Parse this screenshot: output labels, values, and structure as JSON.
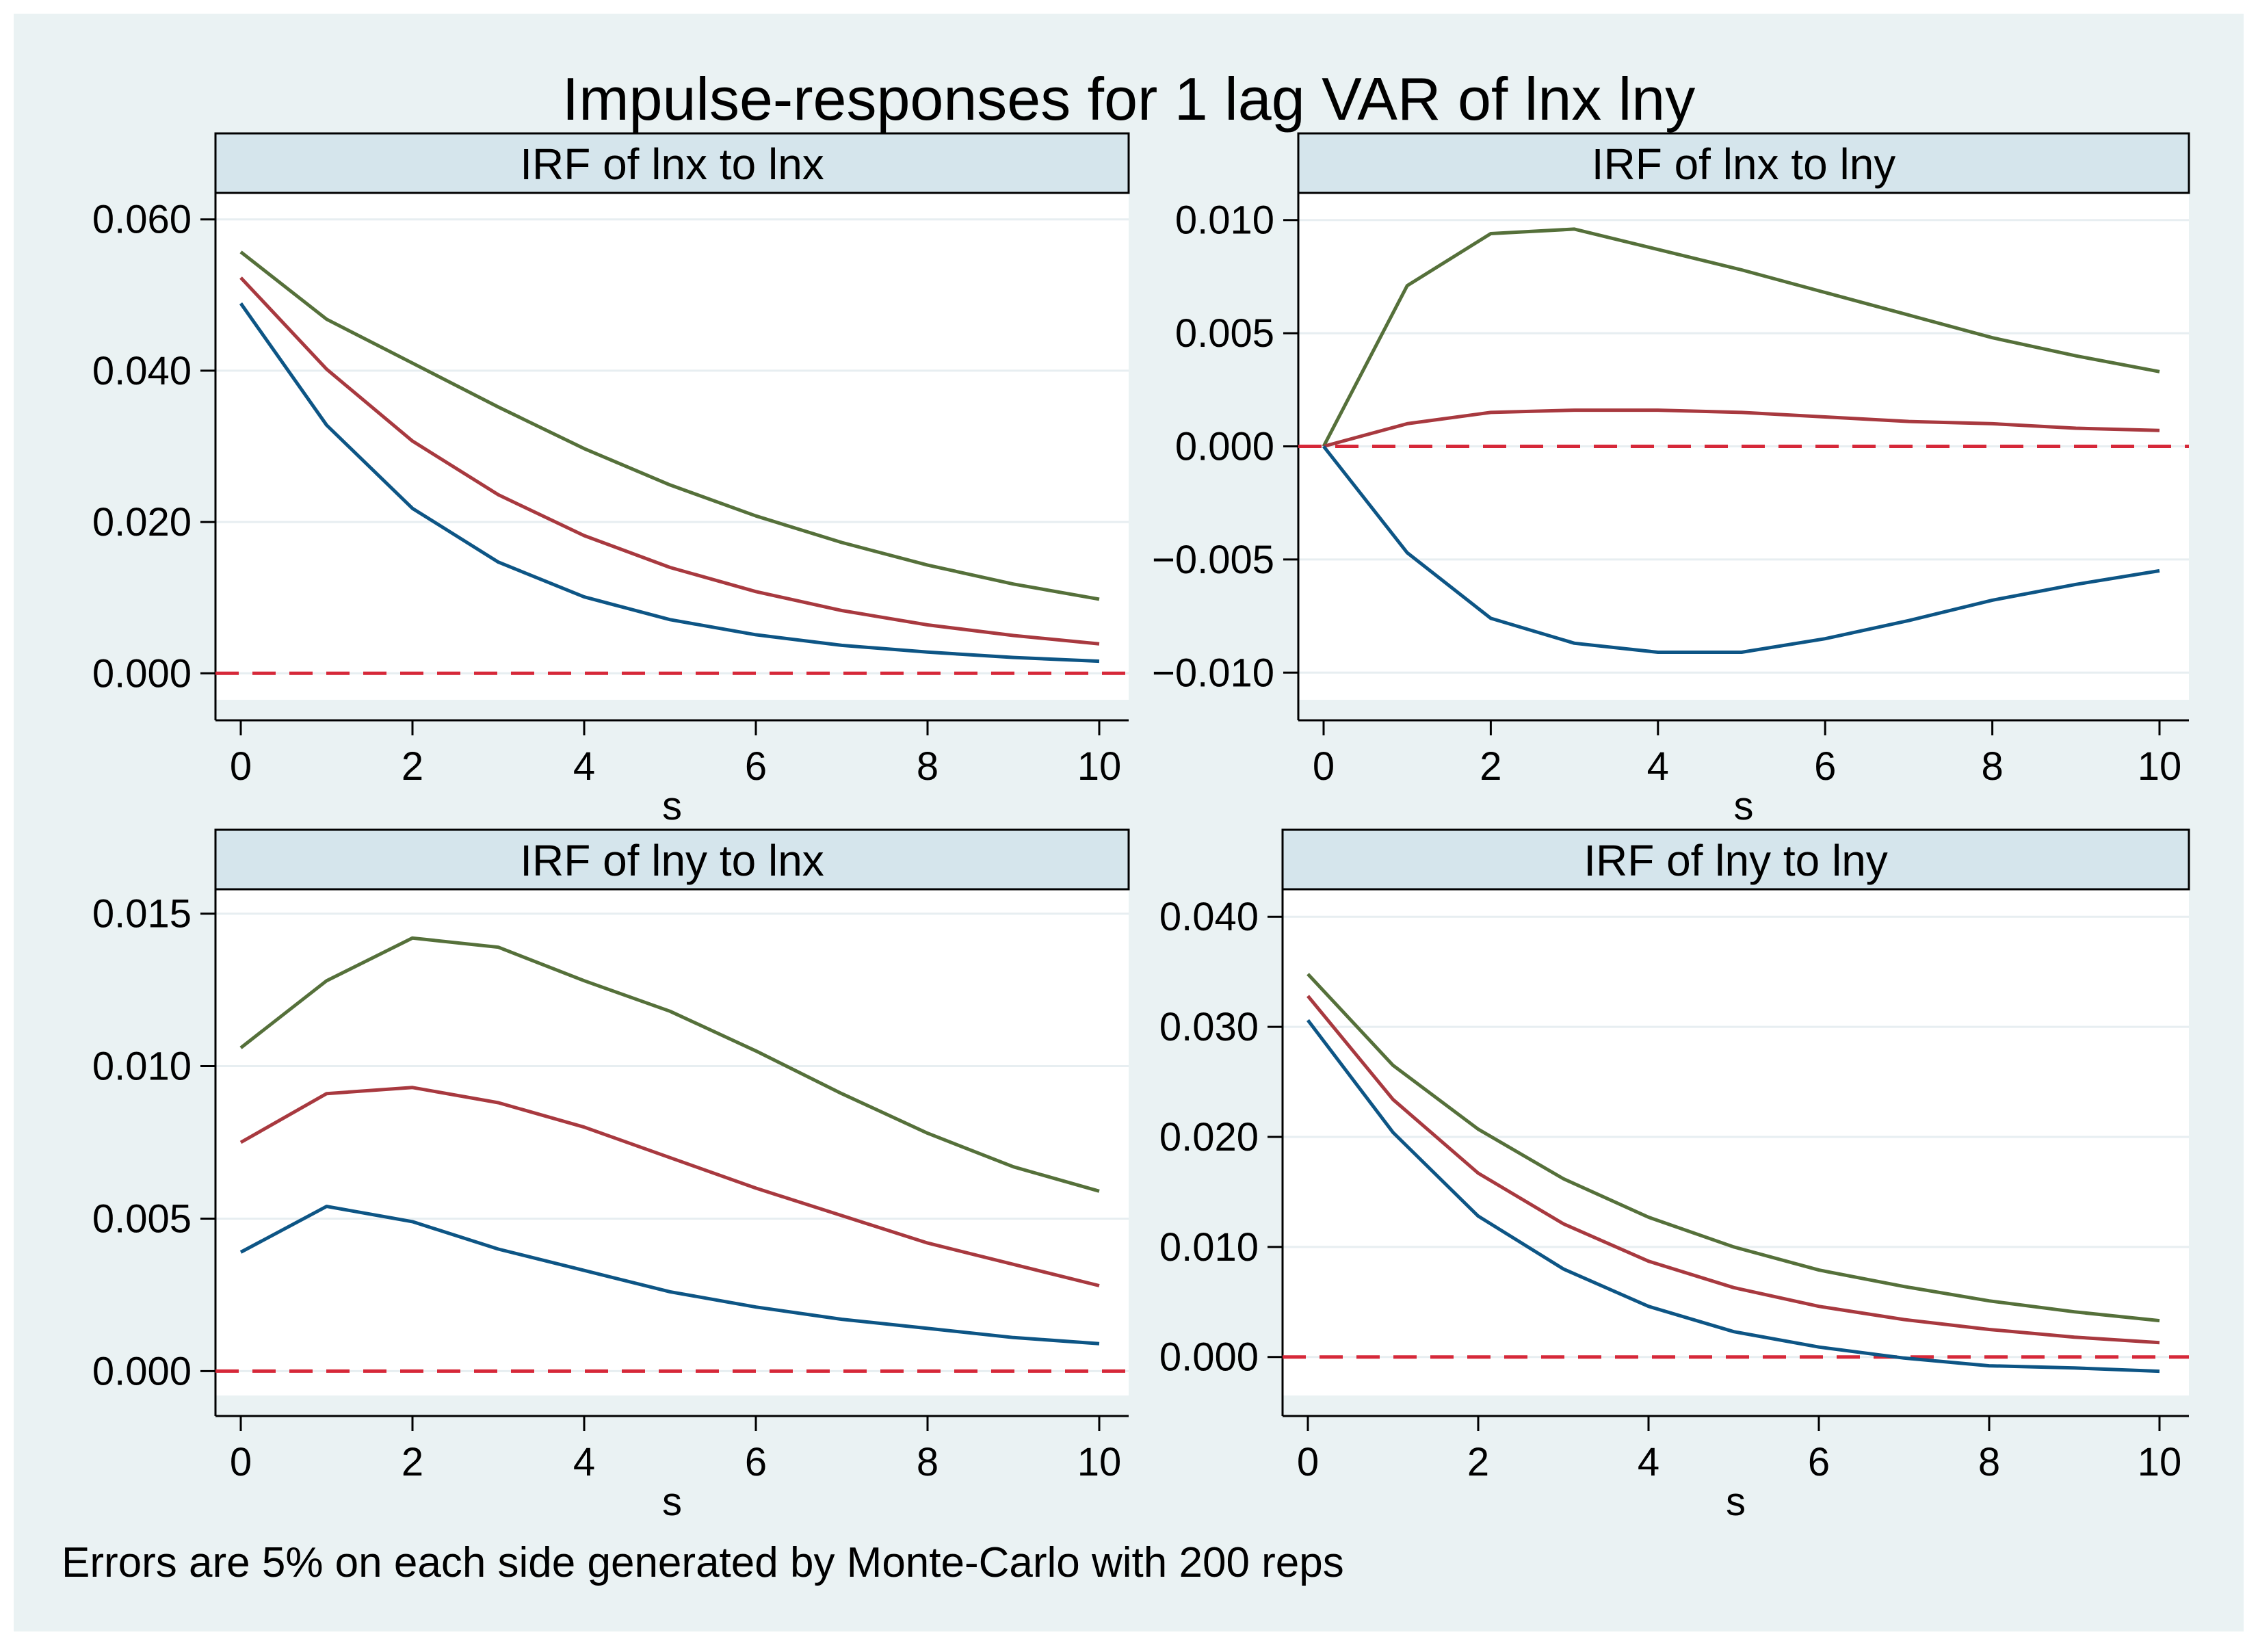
{
  "title": "Impulse-responses for 1 lag VAR of lnx lny",
  "caption": "Errors are 5% on each side generated by Monte-Carlo with 200 reps",
  "colors": {
    "background": "#eaf2f3",
    "panel_header": "#d5e5ec",
    "upper": "#55703a",
    "irf": "#a8393f",
    "lower": "#0d5585",
    "zero_line": "#d62839",
    "grid": "#e7eef1"
  },
  "chart_data": [
    {
      "type": "line",
      "title": "IRF of lnx to lnx",
      "xlabel": "s",
      "x": [
        0,
        1,
        2,
        3,
        4,
        5,
        6,
        7,
        8,
        9,
        10
      ],
      "xticks": [
        "0",
        "2",
        "4",
        "6",
        "8",
        "10"
      ],
      "xtick_values": [
        0,
        2,
        4,
        6,
        8,
        10
      ],
      "ylim": [
        -0.0035,
        0.0635
      ],
      "yticks": [
        "0.000",
        "0.020",
        "0.040",
        "0.060"
      ],
      "ytick_values": [
        0.0,
        0.02,
        0.04,
        0.06
      ],
      "series": [
        {
          "name": "upper",
          "values": [
            0.0557,
            0.0468,
            0.041,
            0.0352,
            0.0297,
            0.0249,
            0.0208,
            0.0173,
            0.0143,
            0.0118,
            0.0098
          ]
        },
        {
          "name": "irf",
          "values": [
            0.0523,
            0.0402,
            0.0307,
            0.0236,
            0.0182,
            0.014,
            0.0108,
            0.0083,
            0.0064,
            0.005,
            0.0039
          ]
        },
        {
          "name": "lower",
          "values": [
            0.0489,
            0.0328,
            0.0218,
            0.0147,
            0.0101,
            0.0071,
            0.0051,
            0.0037,
            0.0028,
            0.0021,
            0.0016
          ]
        }
      ]
    },
    {
      "type": "line",
      "title": "IRF of lnx to lny",
      "xlabel": "s",
      "x": [
        0,
        1,
        2,
        3,
        4,
        5,
        6,
        7,
        8,
        9,
        10
      ],
      "xticks": [
        "0",
        "2",
        "4",
        "6",
        "8",
        "10"
      ],
      "xtick_values": [
        0,
        2,
        4,
        6,
        8,
        10
      ],
      "ylim": [
        -0.0112,
        0.0112
      ],
      "yticks": [
        "-0.010",
        "-0.005",
        "0.000",
        "0.005",
        "0.010"
      ],
      "ytick_values": [
        -0.01,
        -0.005,
        0.0,
        0.005,
        0.01
      ],
      "series": [
        {
          "name": "upper",
          "values": [
            0.0,
            0.0071,
            0.0094,
            0.0096,
            0.0087,
            0.0078,
            0.0068,
            0.0058,
            0.0048,
            0.004,
            0.0033
          ]
        },
        {
          "name": "irf",
          "values": [
            0.0,
            0.001,
            0.0015,
            0.0016,
            0.0016,
            0.0015,
            0.0013,
            0.0011,
            0.001,
            0.0008,
            0.0007
          ]
        },
        {
          "name": "lower",
          "values": [
            0.0,
            -0.0047,
            -0.0076,
            -0.0087,
            -0.0091,
            -0.0091,
            -0.0085,
            -0.0077,
            -0.0068,
            -0.0061,
            -0.0055
          ]
        }
      ]
    },
    {
      "type": "line",
      "title": "IRF of lny to lnx",
      "xlabel": "s",
      "x": [
        0,
        1,
        2,
        3,
        4,
        5,
        6,
        7,
        8,
        9,
        10
      ],
      "xticks": [
        "0",
        "2",
        "4",
        "6",
        "8",
        "10"
      ],
      "xtick_values": [
        0,
        2,
        4,
        6,
        8,
        10
      ],
      "ylim": [
        -0.0008,
        0.0158
      ],
      "yticks": [
        "0.000",
        "0.005",
        "0.010",
        "0.015"
      ],
      "ytick_values": [
        0.0,
        0.005,
        0.01,
        0.015
      ],
      "series": [
        {
          "name": "upper",
          "values": [
            0.0106,
            0.0128,
            0.0142,
            0.0139,
            0.0128,
            0.0118,
            0.0105,
            0.0091,
            0.0078,
            0.0067,
            0.0059
          ]
        },
        {
          "name": "irf",
          "values": [
            0.0075,
            0.0091,
            0.0093,
            0.0088,
            0.008,
            0.007,
            0.006,
            0.0051,
            0.0042,
            0.0035,
            0.0028
          ]
        },
        {
          "name": "lower",
          "values": [
            0.0039,
            0.0054,
            0.0049,
            0.004,
            0.0033,
            0.0026,
            0.0021,
            0.0017,
            0.0014,
            0.0011,
            0.0009
          ]
        }
      ]
    },
    {
      "type": "line",
      "title": "IRF of lny to lny",
      "xlabel": "s",
      "x": [
        0,
        1,
        2,
        3,
        4,
        5,
        6,
        7,
        8,
        9,
        10
      ],
      "xticks": [
        "0",
        "2",
        "4",
        "6",
        "8",
        "10"
      ],
      "xtick_values": [
        0,
        2,
        4,
        6,
        8,
        10
      ],
      "ylim": [
        -0.0035,
        0.0425
      ],
      "yticks": [
        "0.000",
        "0.010",
        "0.020",
        "0.030",
        "0.040"
      ],
      "ytick_values": [
        0.0,
        0.01,
        0.02,
        0.03,
        0.04
      ],
      "series": [
        {
          "name": "upper",
          "values": [
            0.0348,
            0.0265,
            0.0207,
            0.0162,
            0.0127,
            0.01,
            0.0079,
            0.0064,
            0.0051,
            0.0041,
            0.0033
          ]
        },
        {
          "name": "irf",
          "values": [
            0.0328,
            0.0234,
            0.0167,
            0.0121,
            0.0087,
            0.0063,
            0.0046,
            0.0034,
            0.0025,
            0.0018,
            0.0013
          ]
        },
        {
          "name": "lower",
          "values": [
            0.0306,
            0.0204,
            0.0128,
            0.008,
            0.0046,
            0.0023,
            0.0009,
            -0.0001,
            -0.0008,
            -0.001,
            -0.0013
          ]
        }
      ]
    }
  ]
}
